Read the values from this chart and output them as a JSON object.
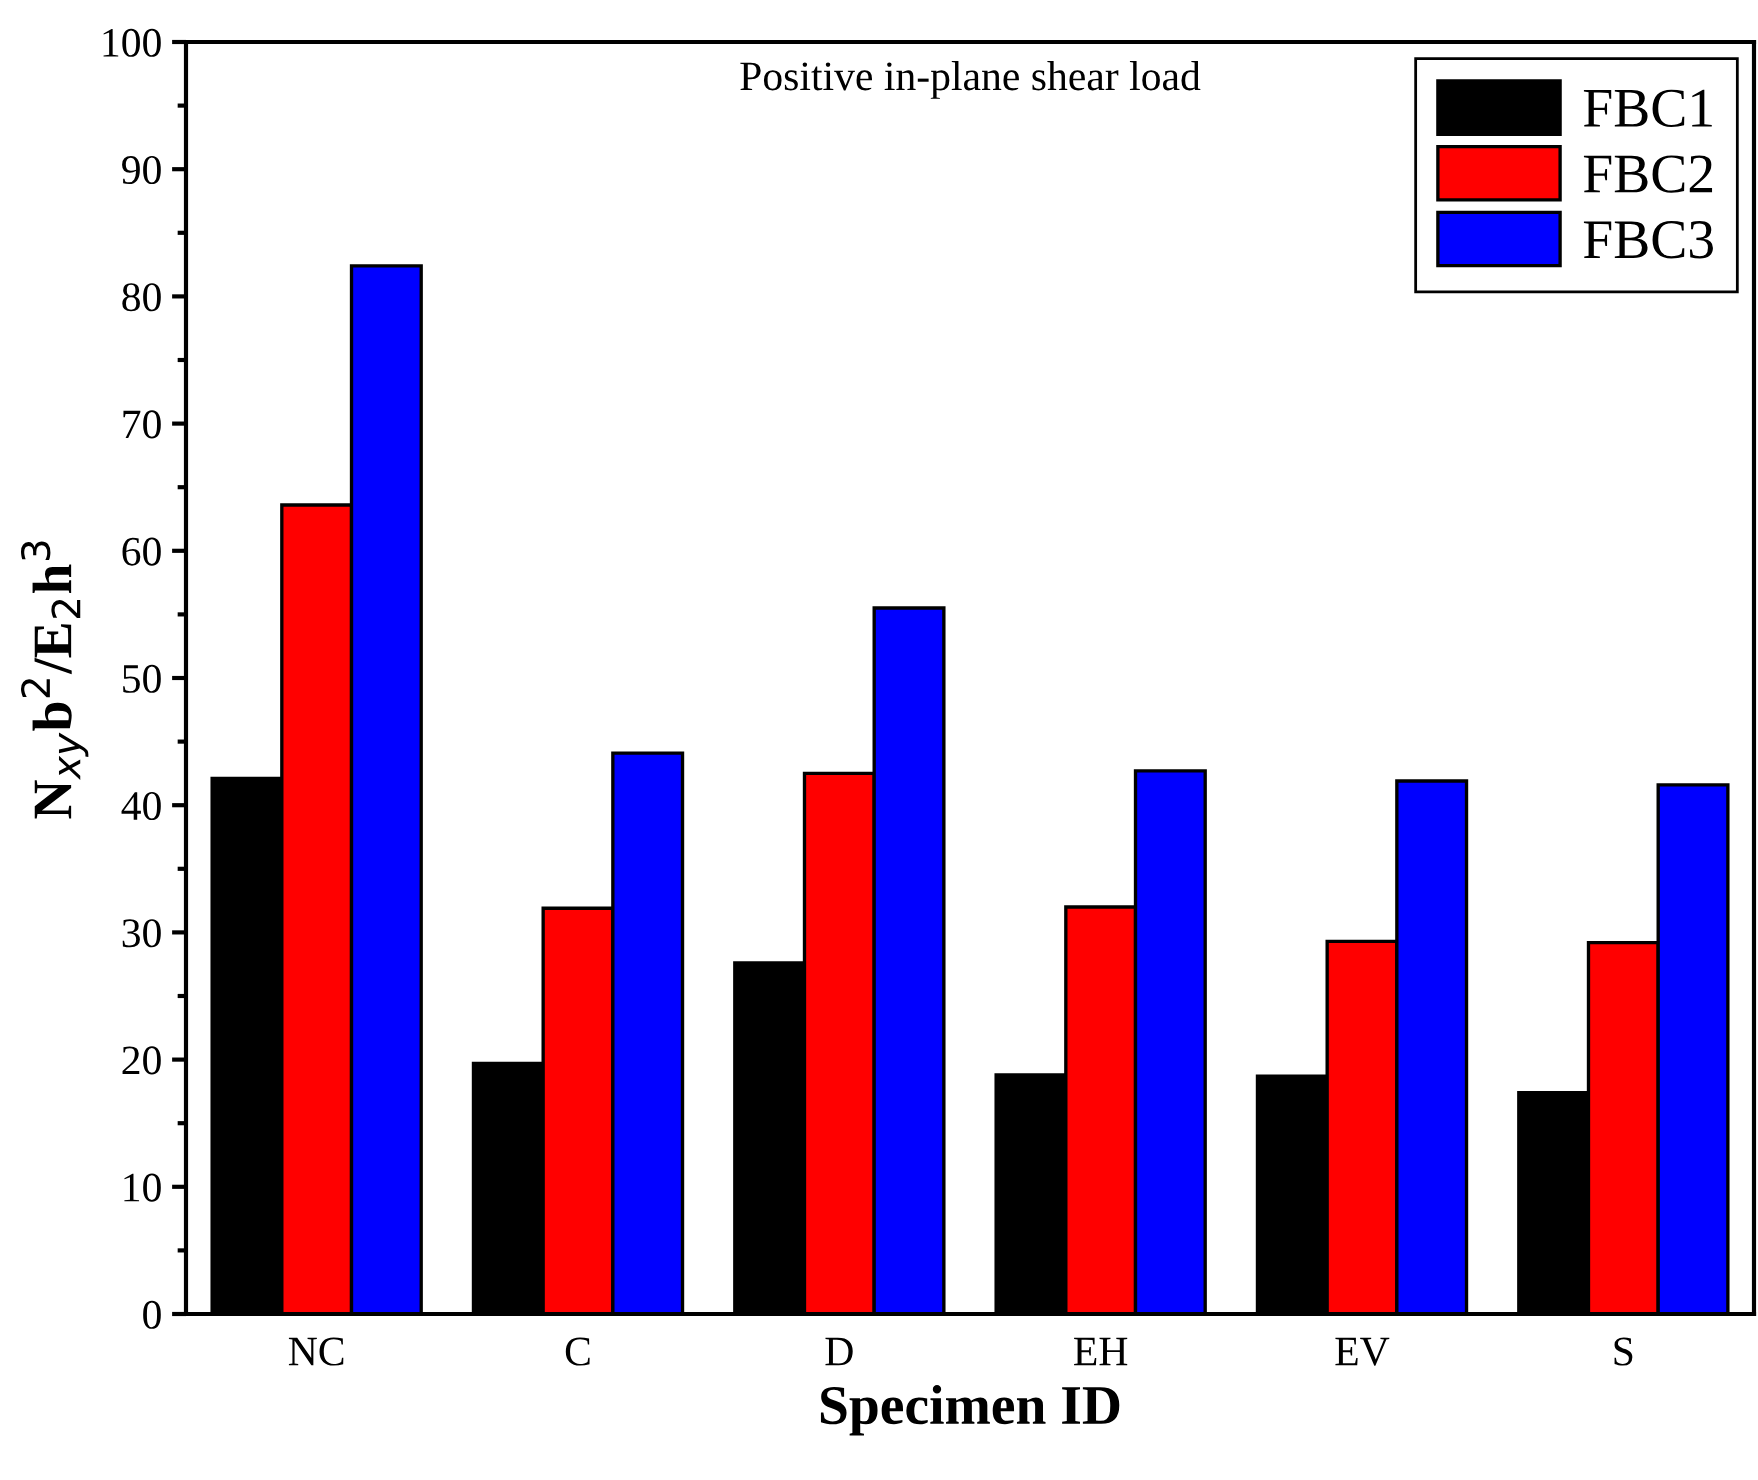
{
  "chart_data": {
    "type": "bar",
    "annotations": [
      "Positive in-plane shear load"
    ],
    "xlabel": "Specimen ID",
    "ylabel": "N$_{xy}$b$^{2}$/E$_{2}$h$^{3}$",
    "categories": [
      "NC",
      "C",
      "D",
      "EH",
      "EV",
      "S"
    ],
    "series": [
      {
        "name": "FBC1",
        "color": "#000000",
        "values": [
          42.1,
          19.7,
          27.6,
          18.8,
          18.7,
          17.4
        ]
      },
      {
        "name": "FBC2",
        "color": "#ff0000",
        "values": [
          63.6,
          31.9,
          42.5,
          32.0,
          29.3,
          29.2
        ]
      },
      {
        "name": "FBC3",
        "color": "#0000ff",
        "values": [
          82.4,
          44.1,
          55.5,
          42.7,
          41.9,
          41.6
        ]
      }
    ],
    "ylim": [
      0,
      100
    ],
    "yticks": [
      0,
      {
        "value": 5,
        "label": null
      },
      10,
      {
        "value": 15,
        "label": null
      },
      20,
      {
        "value": 25,
        "label": null
      },
      30,
      {
        "value": 35,
        "label": null
      },
      40,
      {
        "value": 45,
        "label": null
      },
      50,
      {
        "value": 55,
        "label": null
      },
      60,
      {
        "value": 65,
        "label": null
      },
      70,
      {
        "value": 75,
        "label": null
      },
      80,
      {
        "value": 85,
        "label": null
      },
      90,
      {
        "value": 95,
        "label": null
      },
      100
    ],
    "grid": false,
    "legend": "top right"
  }
}
